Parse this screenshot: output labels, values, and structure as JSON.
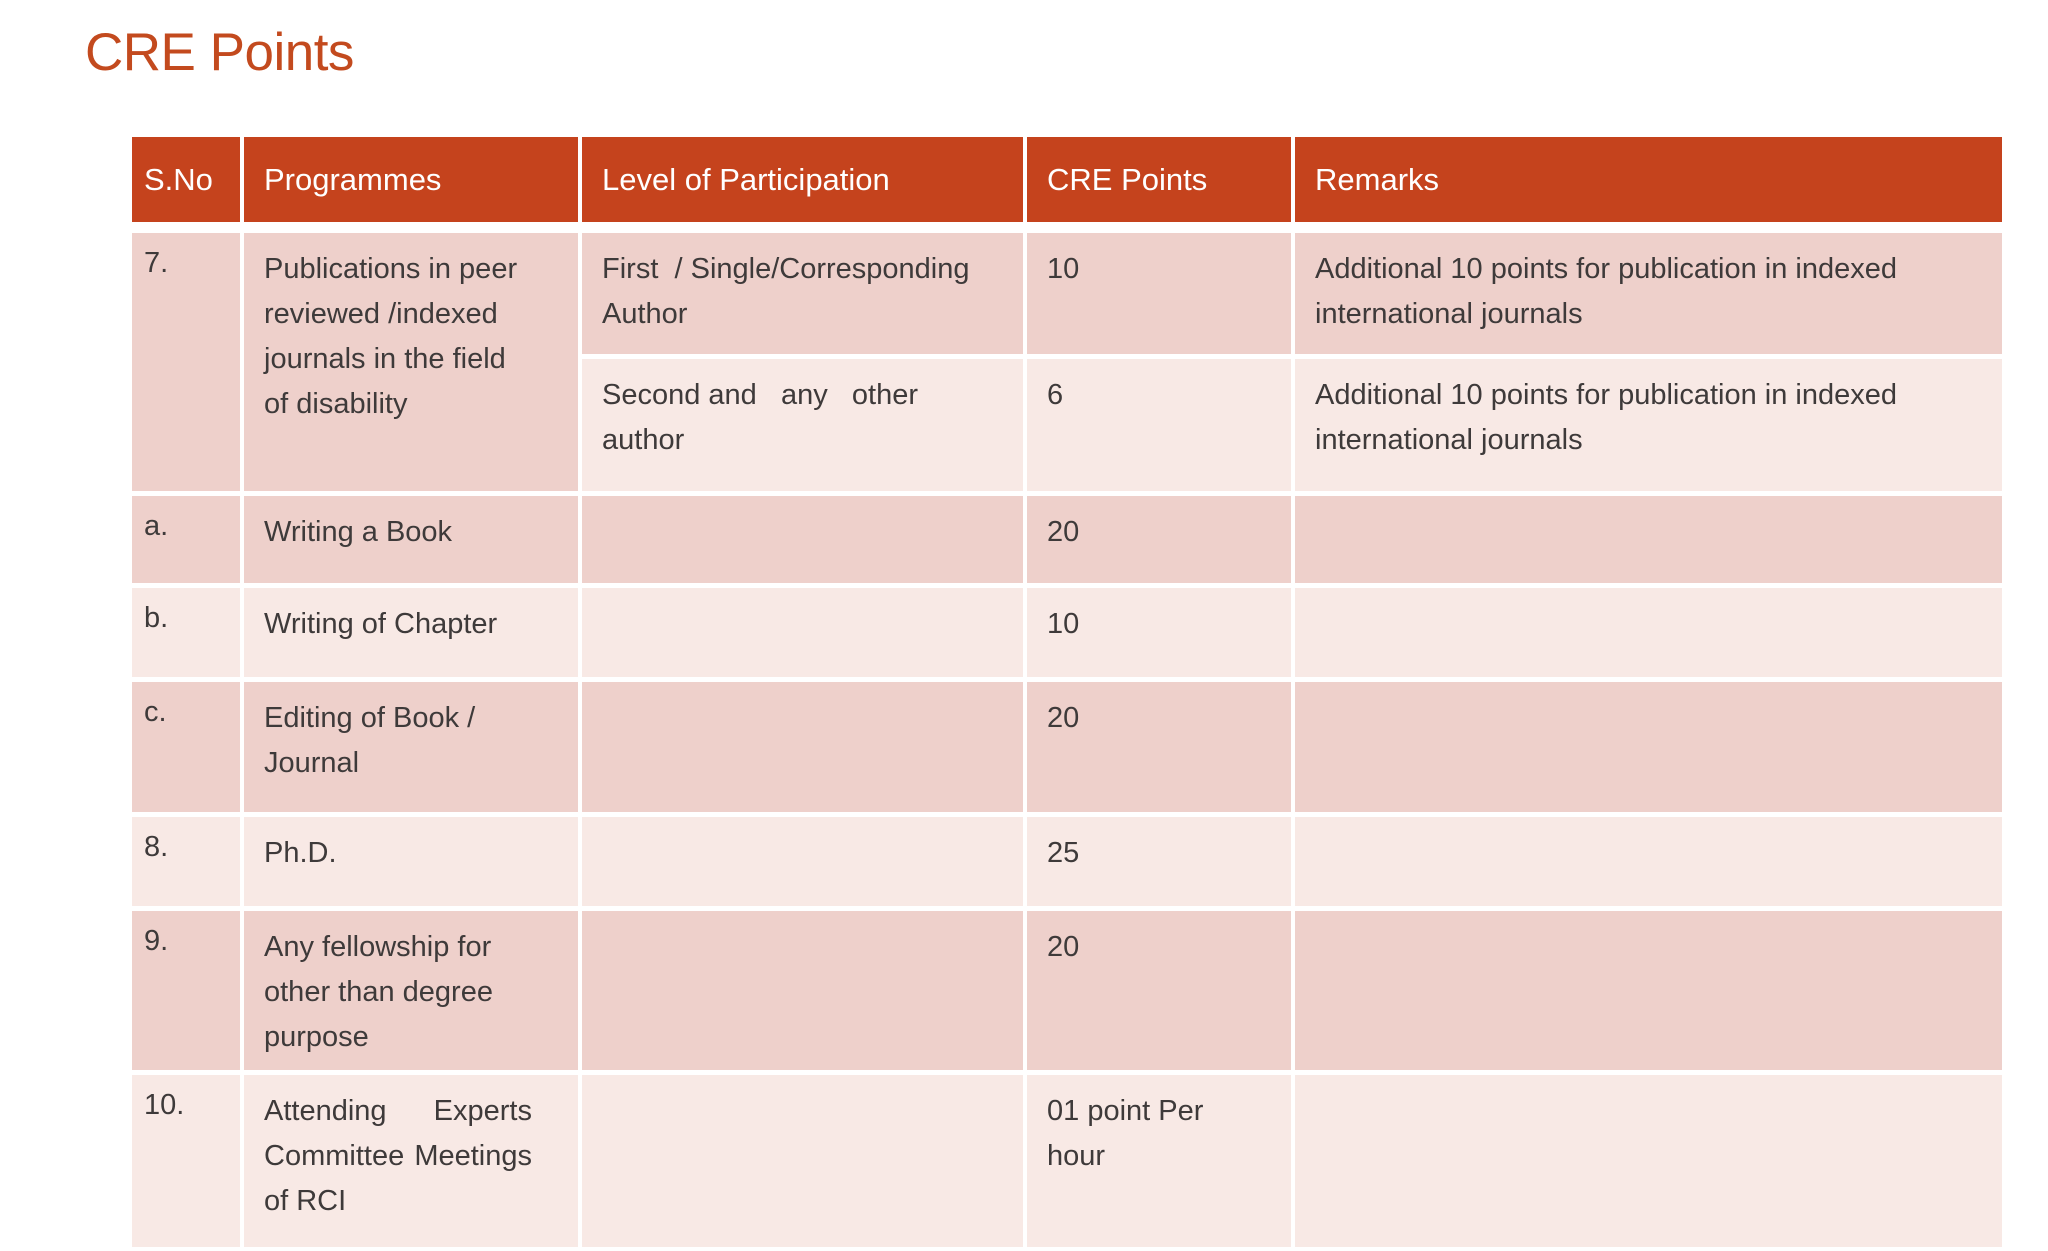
{
  "slide_title": "CRE Points",
  "colors": {
    "header_background": "#C5431D",
    "band_dark": "#EED0CB",
    "band_light": "#F8E9E5",
    "title_text": "#C34A1E",
    "body_text": "#3E3A3A",
    "header_text": "#FFFFFF"
  },
  "table": {
    "headers": {
      "sno": "S.No",
      "programmes": "Programmes",
      "level": "Level of Participation",
      "points": "CRE Points",
      "remarks": "Remarks"
    },
    "row7": {
      "sno": "7.",
      "programmes": "Publications in peer reviewed /indexed journals in the field of disability",
      "sub_rows": [
        {
          "level": "First  / Single/Corresponding Author",
          "points": "10",
          "remarks": "Additional 10 points for publication in indexed international journals"
        },
        {
          "level": "Second and   any   other author",
          "points": "6",
          "remarks": "Additional 10 points for publication in indexed international journals"
        }
      ]
    },
    "rows": [
      {
        "sno": "a.",
        "programmes": "Writing a Book",
        "level": "",
        "points": "20",
        "remarks": ""
      },
      {
        "sno": "b.",
        "programmes": "Writing of Chapter",
        "level": "",
        "points": "10",
        "remarks": ""
      },
      {
        "sno": "c.",
        "programmes": "Editing of Book / Journal",
        "level": "",
        "points": "20",
        "remarks": ""
      },
      {
        "sno": "8.",
        "programmes": "Ph.D.",
        "level": "",
        "points": "25",
        "remarks": ""
      },
      {
        "sno": "9.",
        "programmes": "Any fellowship for other than degree purpose",
        "level": "",
        "points": "20",
        "remarks": ""
      },
      {
        "sno": "10.",
        "programmes": "Attending Experts Committee Meetings of RCI",
        "level": "",
        "points": "01 point Per hour",
        "remarks": ""
      }
    ]
  }
}
